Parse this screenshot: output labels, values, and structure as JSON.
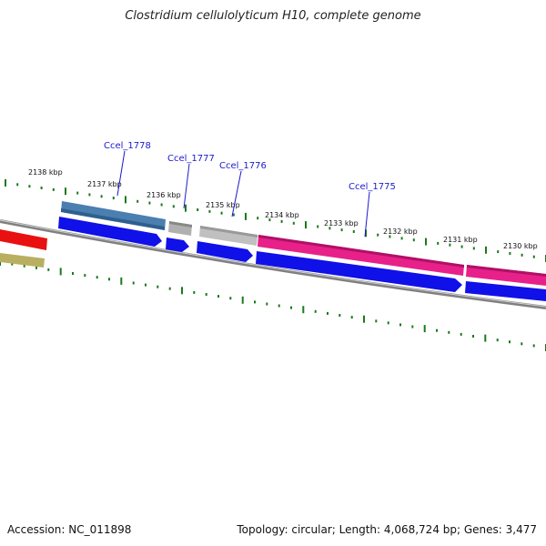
{
  "title": "Clostridium cellulolyticum H10, complete genome",
  "footer": {
    "accession": "Accession: NC_011898",
    "summary": "Topology: circular; Length: 4,068,724 bp; Genes: 3,477"
  },
  "scale_labels": [
    "2138 kbp",
    "2137 kbp",
    "2136 kbp",
    "2135 kbp",
    "2134 kbp",
    "2133 kbp",
    "2132 kbp",
    "2131 kbp",
    "2130 kbp"
  ],
  "gene_labels": [
    "Ccel_1778",
    "Ccel_1777",
    "Ccel_1776",
    "Ccel_1775"
  ],
  "colors": {
    "backbone": "#808080",
    "tick": "#1a7a1a",
    "cds_arrow": "#1010e8",
    "feature_steelblue": "#4a7fb0",
    "feature_grey": "#b0b0b0",
    "feature_pink": "#e8208a",
    "feature_red": "#e81010",
    "feature_olive": "#b8b060",
    "label_line": "#1a1acc"
  }
}
